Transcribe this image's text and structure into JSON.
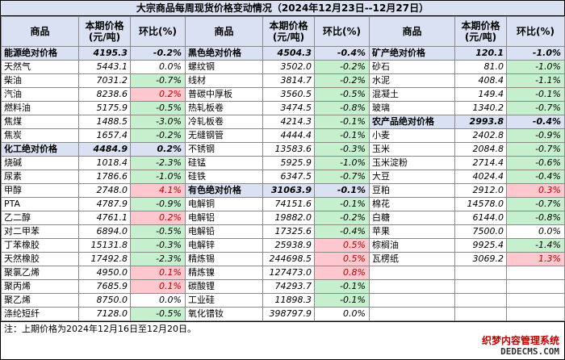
{
  "title": "大宗商品每周现货价格变动情况（2024年12月23日--12月27日）",
  "headers": {
    "name": "商品",
    "price": "本期价格(元/吨)",
    "change": "环比(%)"
  },
  "col1": [
    {
      "name": "能源绝对价格",
      "price": "4195.3",
      "change": "-0.2%",
      "agg": true
    },
    {
      "name": "天然气",
      "price": "5443.1",
      "change": "0.0%"
    },
    {
      "name": "柴油",
      "price": "7031.2",
      "change": "-0.7%"
    },
    {
      "name": "汽油",
      "price": "8238.6",
      "change": "0.2%"
    },
    {
      "name": "燃料油",
      "price": "5175.9",
      "change": "-0.5%"
    },
    {
      "name": "焦煤",
      "price": "1488.5",
      "change": "-3.0%"
    },
    {
      "name": "焦炭",
      "price": "1657.4",
      "change": "-0.2%"
    },
    {
      "name": "化工绝对价格",
      "price": "4484.9",
      "change": "0.2%",
      "agg": true
    },
    {
      "name": "烧碱",
      "price": "1018.4",
      "change": "-2.3%"
    },
    {
      "name": "尿素",
      "price": "1786.6",
      "change": "-1.0%"
    },
    {
      "name": "甲醇",
      "price": "2748.0",
      "change": "4.1%"
    },
    {
      "name": "PTA",
      "price": "4787.9",
      "change": "-0.9%"
    },
    {
      "name": "乙二醇",
      "price": "4761.1",
      "change": "0.2%"
    },
    {
      "name": "对二甲苯",
      "price": "6894.0",
      "change": "-0.5%"
    },
    {
      "name": "丁苯橡胶",
      "price": "15131.8",
      "change": "-0.3%"
    },
    {
      "name": "天然橡胶",
      "price": "17492.8",
      "change": "-2.3%"
    },
    {
      "name": "聚氯乙烯",
      "price": "4950.0",
      "change": "0.1%"
    },
    {
      "name": "聚丙烯",
      "price": "7685.9",
      "change": "0.1%"
    },
    {
      "name": "聚乙烯",
      "price": "8750.0",
      "change": "0.0%"
    },
    {
      "name": "涤纶短纤",
      "price": "7128.0",
      "change": "-0.5%"
    }
  ],
  "col2": [
    {
      "name": "黑色绝对价格",
      "price": "4504.3",
      "change": "-0.4%",
      "agg": true
    },
    {
      "name": "螺纹钢",
      "price": "3502.0",
      "change": "-0.2%"
    },
    {
      "name": "线材",
      "price": "3814.7",
      "change": "-0.2%"
    },
    {
      "name": "普碳中厚板",
      "price": "3560.5",
      "change": "-0.5%"
    },
    {
      "name": "热轧板卷",
      "price": "3474.5",
      "change": "-0.8%"
    },
    {
      "name": "冷轧板卷",
      "price": "4214.3",
      "change": "-0.1%"
    },
    {
      "name": "无缝钢管",
      "price": "4444.4",
      "change": "-0.1%"
    },
    {
      "name": "不锈钢",
      "price": "13583.6",
      "change": "-0.3%"
    },
    {
      "name": "硅锰",
      "price": "5925.9",
      "change": "-1.0%"
    },
    {
      "name": "硅铁",
      "price": "6347.5",
      "change": "-0.7%"
    },
    {
      "name": "有色绝对价格",
      "price": "31063.9",
      "change": "-0.1%",
      "agg": true
    },
    {
      "name": "电解铜",
      "price": "74151.6",
      "change": "-0.1%"
    },
    {
      "name": "电解铝",
      "price": "19882.0",
      "change": "-0.2%"
    },
    {
      "name": "电解铅",
      "price": "17325.6",
      "change": "-0.4%"
    },
    {
      "name": "电解锌",
      "price": "25938.9",
      "change": "0.5%"
    },
    {
      "name": "精炼锡",
      "price": "244698.5",
      "change": "0.5%"
    },
    {
      "name": "精炼镍",
      "price": "127473.0",
      "change": "0.8%"
    },
    {
      "name": "碳酸锂",
      "price": "74293.7",
      "change": "-0.1%"
    },
    {
      "name": "工业硅",
      "price": "11898.3",
      "change": "-0.1%"
    },
    {
      "name": "氧化镨钕",
      "price": "398797.9",
      "change": "0.0%"
    }
  ],
  "col3": [
    {
      "name": "矿产绝对价格",
      "price": "120.1",
      "change": "-1.0%",
      "agg": true
    },
    {
      "name": "砂石",
      "price": "81.0",
      "change": "-1.0%"
    },
    {
      "name": "水泥",
      "price": "408.4",
      "change": "-1.1%"
    },
    {
      "name": "混凝土",
      "price": "149.4",
      "change": "-0.1%"
    },
    {
      "name": "玻璃",
      "price": "1340.2",
      "change": "-0.7%"
    },
    {
      "name": "农产品绝对价格",
      "price": "2993.8",
      "change": "-0.4%",
      "agg": true
    },
    {
      "name": "小麦",
      "price": "2402.8",
      "change": "-0.9%"
    },
    {
      "name": "玉米",
      "price": "2084.8",
      "change": "-0.7%"
    },
    {
      "name": "玉米淀粉",
      "price": "2714.4",
      "change": "-0.6%"
    },
    {
      "name": "大豆",
      "price": "4024.4",
      "change": "-0.4%"
    },
    {
      "name": "豆粕",
      "price": "2912.0",
      "change": "0.3%"
    },
    {
      "name": "棉花",
      "price": "14578.0",
      "change": "-0.7%"
    },
    {
      "name": "白糖",
      "price": "6144.0",
      "change": "-0.8%"
    },
    {
      "name": "苹果",
      "price": "7500.0",
      "change": "0.0%"
    },
    {
      "name": "棕榈油",
      "price": "9925.4",
      "change": "-1.4%"
    },
    {
      "name": "瓦楞纸",
      "price": "3069.2",
      "change": "1.3%"
    },
    {
      "name": "",
      "price": "",
      "change": ""
    },
    {
      "name": "",
      "price": "",
      "change": ""
    },
    {
      "name": "",
      "price": "",
      "change": ""
    },
    {
      "name": "",
      "price": "",
      "change": ""
    }
  ],
  "note": "注：上期价格为2024年12月16日至12月20日。",
  "watermark": {
    "line1": "织梦内容管理系统",
    "line2": "DEDECMS.COM"
  }
}
